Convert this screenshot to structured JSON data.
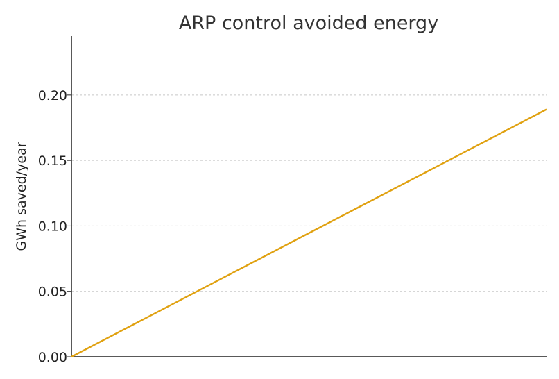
{
  "chart_data": {
    "type": "line",
    "title": "ARP control avoided energy",
    "xlabel": "",
    "ylabel": "GWh saved/year",
    "ylim": [
      0,
      0.245
    ],
    "yticks": [
      "0.00",
      "0.05",
      "0.10",
      "0.15",
      "0.20"
    ],
    "grid": "y-dashed",
    "series": [
      {
        "x": [
          0,
          1
        ],
        "values": [
          0.0,
          0.189
        ]
      }
    ],
    "colors": {
      "line": "#e0a110",
      "axis": "#222222",
      "grid": "#c8c8c8"
    }
  }
}
